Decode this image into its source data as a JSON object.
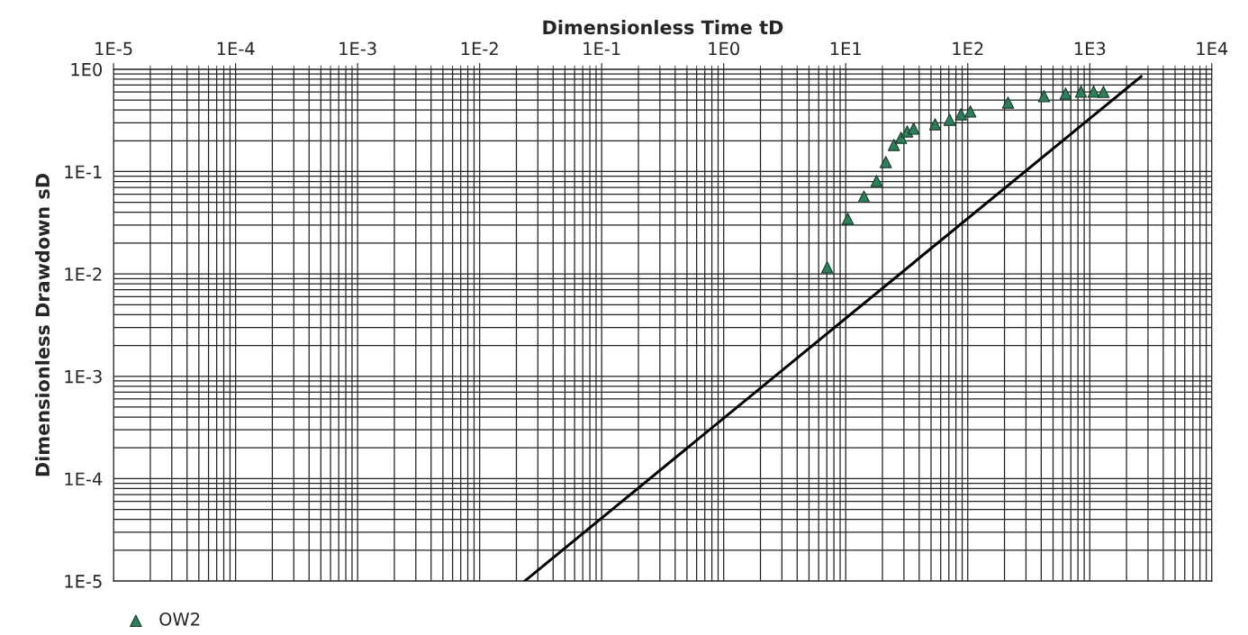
{
  "chart_data": {
    "type": "scatter",
    "xlabel": "Dimensionless Time tD",
    "ylabel": "Dimensionless Drawdown sD",
    "log": "xy",
    "grid": true,
    "legend": "bottom left",
    "marker": "triangle",
    "xlim": [
      1e-05,
      10000
    ],
    "ylim": [
      1e-05,
      1
    ],
    "xticks": [
      {
        "value": 1e-05,
        "label": "1E-5"
      },
      {
        "value": 0.0001,
        "label": "1E-4"
      },
      {
        "value": 0.001,
        "label": "1E-3"
      },
      {
        "value": 0.01,
        "label": "1E-2"
      },
      {
        "value": 0.1,
        "label": "1E-1"
      },
      {
        "value": 1,
        "label": "1E0"
      },
      {
        "value": 10,
        "label": "1E1"
      },
      {
        "value": 100,
        "label": "1E2"
      },
      {
        "value": 1000,
        "label": "1E3"
      },
      {
        "value": 10000,
        "label": "1E4"
      }
    ],
    "yticks": [
      {
        "value": 1e-05,
        "label": "1E-5"
      },
      {
        "value": 0.0001,
        "label": "1E-4"
      },
      {
        "value": 0.001,
        "label": "1E-3"
      },
      {
        "value": 0.01,
        "label": "1E-2"
      },
      {
        "value": 0.1,
        "label": "1E-1"
      },
      {
        "value": 1,
        "label": "1E0"
      }
    ],
    "series": [
      {
        "name": "OW2",
        "color": "#2e7d5b",
        "x": [
          7.05,
          10.4,
          14.1,
          17.9,
          21.3,
          24.8,
          28.4,
          31.9,
          36.0,
          54,
          71,
          88,
          105,
          214,
          422,
          634,
          847,
          1075,
          1295
        ],
        "values": [
          0.0116,
          0.0346,
          0.057,
          0.081,
          0.124,
          0.182,
          0.214,
          0.247,
          0.263,
          0.29,
          0.321,
          0.363,
          0.386,
          0.472,
          0.545,
          0.578,
          0.603,
          0.603,
          0.6
        ]
      },
      {
        "type": "line",
        "color": "#000000",
        "marker": "none",
        "line_style": "solid",
        "x": [
          0.0234,
          2640
        ],
        "values": [
          1e-05,
          0.85
        ]
      }
    ]
  }
}
